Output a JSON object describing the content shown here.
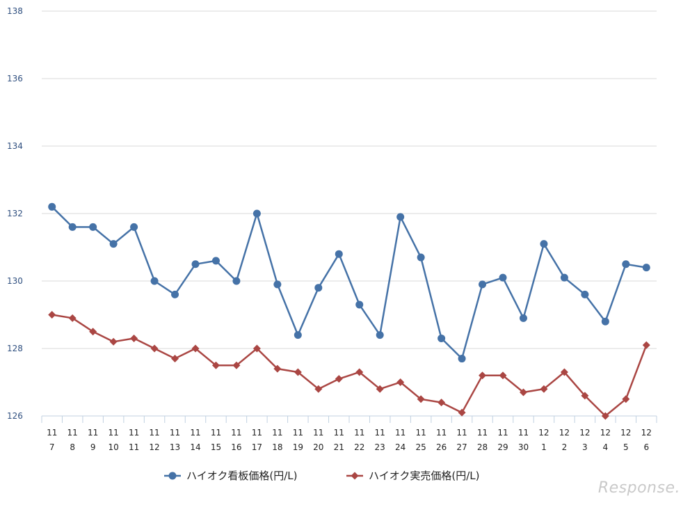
{
  "chart_data": {
    "type": "line",
    "categories": [
      [
        "11",
        "7"
      ],
      [
        "11",
        "8"
      ],
      [
        "11",
        "9"
      ],
      [
        "11",
        "10"
      ],
      [
        "11",
        "11"
      ],
      [
        "11",
        "12"
      ],
      [
        "11",
        "13"
      ],
      [
        "11",
        "14"
      ],
      [
        "11",
        "15"
      ],
      [
        "11",
        "16"
      ],
      [
        "11",
        "17"
      ],
      [
        "11",
        "18"
      ],
      [
        "11",
        "19"
      ],
      [
        "11",
        "20"
      ],
      [
        "11",
        "21"
      ],
      [
        "11",
        "22"
      ],
      [
        "11",
        "23"
      ],
      [
        "11",
        "24"
      ],
      [
        "11",
        "25"
      ],
      [
        "11",
        "26"
      ],
      [
        "11",
        "27"
      ],
      [
        "11",
        "28"
      ],
      [
        "11",
        "29"
      ],
      [
        "11",
        "30"
      ],
      [
        "12",
        "1"
      ],
      [
        "12",
        "2"
      ],
      [
        "12",
        "3"
      ],
      [
        "12",
        "4"
      ],
      [
        "12",
        "5"
      ],
      [
        "12",
        "6"
      ]
    ],
    "series": [
      {
        "name": "ハイオク看板価格(円/L)",
        "color": "#4572a7",
        "marker": "circle",
        "values": [
          132.2,
          131.6,
          131.6,
          131.1,
          131.6,
          130.0,
          129.6,
          130.5,
          130.6,
          130.0,
          132.0,
          129.9,
          128.4,
          129.8,
          130.8,
          129.3,
          128.4,
          131.9,
          130.7,
          128.3,
          127.7,
          129.9,
          130.1,
          128.9,
          131.1,
          130.1,
          129.6,
          128.8,
          130.5,
          130.4
        ]
      },
      {
        "name": "ハイオク実売価格(円/L)",
        "color": "#aa4643",
        "marker": "diamond",
        "values": [
          129.0,
          128.9,
          128.5,
          128.2,
          128.3,
          128.0,
          127.7,
          128.0,
          127.5,
          127.5,
          128.0,
          127.4,
          127.3,
          126.8,
          127.1,
          127.3,
          126.8,
          127.0,
          126.5,
          126.4,
          126.1,
          127.2,
          127.2,
          126.7,
          126.8,
          127.3,
          126.6,
          126.0,
          126.5,
          128.1
        ]
      }
    ],
    "yticks": [
      126,
      128,
      130,
      132,
      134,
      136,
      138
    ],
    "ylim": [
      126,
      138
    ],
    "grid": true,
    "legend_position": "bottom-center"
  },
  "watermark": "Response."
}
